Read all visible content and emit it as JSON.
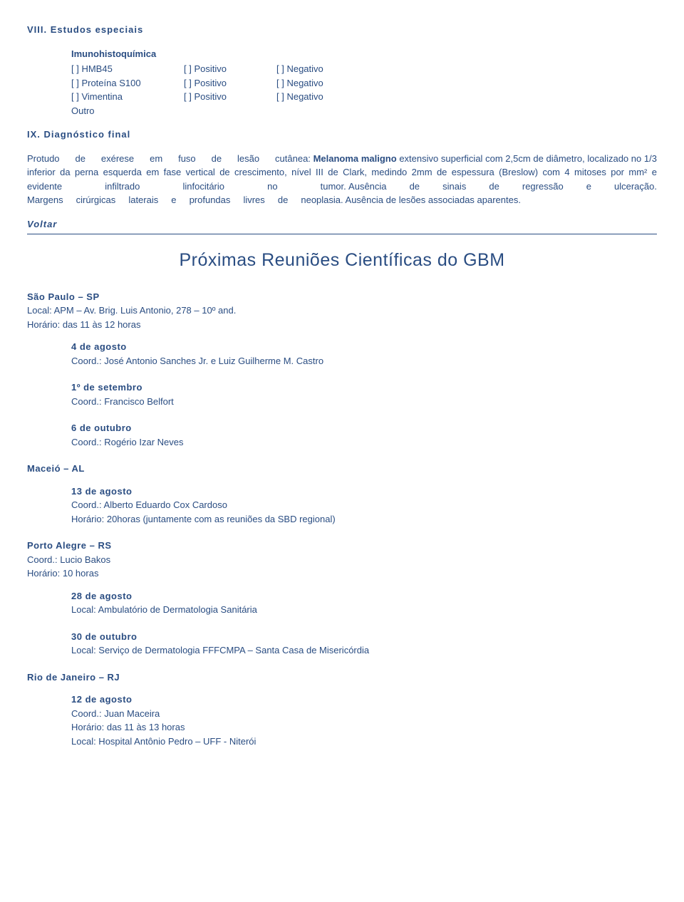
{
  "colors": {
    "text": "#2a4d82",
    "background": "#ffffff",
    "rule": "#2a4d82"
  },
  "typography": {
    "font_family": "Verdana, Arial, sans-serif",
    "body_size_pt": 10,
    "heading_size_pt": 19
  },
  "section8": {
    "title": "VIII. Estudos especiais",
    "iq_title": "Imunohistoquímica",
    "rows": [
      {
        "c1": "[ ] HMB45",
        "c2": "[ ] Positivo",
        "c3": "[ ] Negativo"
      },
      {
        "c1": "[ ] Proteína S100",
        "c2": "[ ] Positivo",
        "c3": "[ ] Negativo"
      },
      {
        "c1": "[ ] Vimentina",
        "c2": "[ ] Positivo",
        "c3": "[ ] Negativo"
      },
      {
        "c1": "Outro",
        "c2": "",
        "c3": ""
      }
    ]
  },
  "section9": {
    "title": "IX. Diagnóstico final",
    "body": "Protudo de exérese em fuso de lesão cutânea: Melanoma maligno extensivo superficial com 2,5cm de diâmetro, localizado no 1/3 inferior da perna esquerda em fase vertical de crescimento, nível III de Clark, medindo 2mm de espessura (Breslow) com 4 mitoses por mm² e evidente infiltrado linfocitário no tumor. Ausência de sinais de regressão e ulceração. Margens cirúrgicas laterais e profundas livres de neoplasia. Ausência de lesões associadas aparentes."
  },
  "voltar": "Voltar",
  "main_heading": "Próximas Reuniões Científicas do GBM",
  "sp": {
    "head": "São Paulo – SP",
    "local": "Local: APM – Av. Brig. Luis Antonio, 278 – 10º and.",
    "horario": "Horário: das 11 às 12 horas",
    "events": [
      {
        "date": "4 de agosto",
        "line": "Coord.: José Antonio Sanches Jr. e Luiz Guilherme M. Castro"
      },
      {
        "date": "1º de setembro",
        "line": "Coord.: Francisco Belfort"
      },
      {
        "date": "6 de outubro",
        "line": "Coord.: Rogério Izar Neves"
      }
    ]
  },
  "maceio": {
    "head": "Maceió – AL",
    "events": [
      {
        "date": "13 de agosto",
        "line1": "Coord.: Alberto Eduardo Cox Cardoso",
        "line2": "Horário: 20horas (juntamente com as reuniões da SBD regional)"
      }
    ]
  },
  "poa": {
    "head": "Porto Alegre – RS",
    "coord": "Coord.: Lucio Bakos",
    "horario": "Horário: 10 horas",
    "events": [
      {
        "date": "28 de agosto",
        "line": "Local: Ambulatório de Dermatologia Sanitária"
      },
      {
        "date": "30 de outubro",
        "line": "Local: Serviço de Dermatologia FFFCMPA – Santa Casa de Misericórdia"
      }
    ]
  },
  "rj": {
    "head": "Rio de Janeiro – RJ",
    "events": [
      {
        "date": "12 de agosto",
        "line1": "Coord.: Juan Maceira",
        "line2": "Horário: das 11 às 13 horas",
        "line3": "Local: Hospital Antônio Pedro – UFF - Niterói"
      }
    ]
  }
}
